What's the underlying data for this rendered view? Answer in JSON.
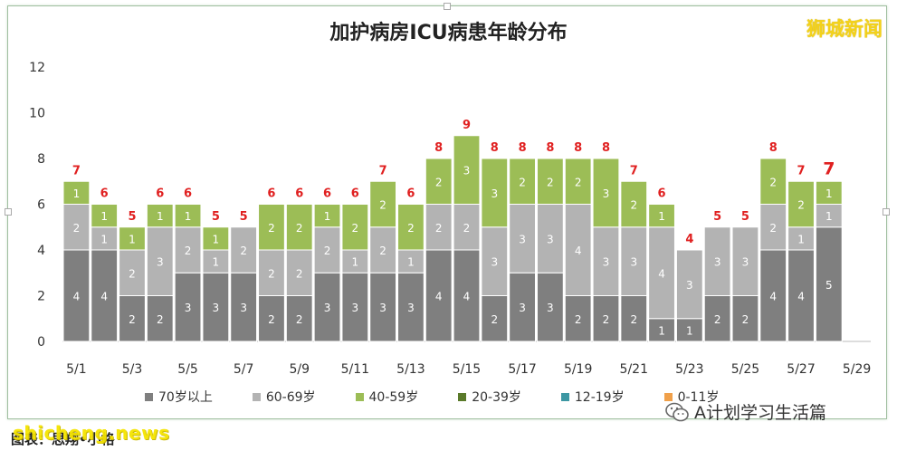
{
  "brand": "狮城新闻",
  "watermark": "shicheng.news",
  "caption": "图表：思翔•小格",
  "wechat_label": "A计划学习生活篇",
  "colors": {
    "70+": "#7f7f7f",
    "60-69": "#b3b3b3",
    "40-59": "#9cbd56",
    "20-39": "#5a7a2a",
    "12-19": "#3d97a3",
    "0-11": "#f0a04a",
    "total_label": "#e02020"
  },
  "chart_data": {
    "type": "bar",
    "stacked": true,
    "title": "加护病房ICU病患年龄分布",
    "ylim": [
      0,
      12
    ],
    "yticks": [
      0,
      2,
      4,
      6,
      8,
      10,
      12
    ],
    "categories": [
      "5/1",
      "5/2",
      "5/3",
      "5/4",
      "5/5",
      "5/6",
      "5/7",
      "5/8",
      "5/9",
      "5/10",
      "5/11",
      "5/12",
      "5/13",
      "5/14",
      "5/15",
      "5/16",
      "5/17",
      "5/18",
      "5/19",
      "5/20",
      "5/21",
      "5/22",
      "5/23",
      "5/24",
      "5/25",
      "5/26",
      "5/27",
      "5/28",
      "5/29"
    ],
    "xtick_labels": [
      "5/1",
      "5/3",
      "5/5",
      "5/7",
      "5/9",
      "5/11",
      "5/13",
      "5/15",
      "5/17",
      "5/19",
      "5/21",
      "5/23",
      "5/25",
      "5/27",
      "5/29"
    ],
    "series": [
      {
        "name": "70岁以上",
        "values": [
          4,
          4,
          2,
          2,
          3,
          3,
          3,
          2,
          2,
          3,
          3,
          3,
          3,
          4,
          4,
          2,
          3,
          3,
          2,
          2,
          2,
          1,
          1,
          2,
          2,
          4,
          4,
          5,
          null
        ]
      },
      {
        "name": "60-69岁",
        "values": [
          2,
          1,
          2,
          3,
          2,
          1,
          2,
          2,
          2,
          2,
          1,
          2,
          1,
          2,
          2,
          3,
          3,
          3,
          4,
          3,
          3,
          4,
          3,
          3,
          3,
          2,
          1,
          1,
          null
        ]
      },
      {
        "name": "40-59岁",
        "values": [
          1,
          1,
          1,
          1,
          1,
          1,
          0,
          2,
          2,
          1,
          2,
          2,
          2,
          2,
          3,
          3,
          2,
          2,
          2,
          3,
          2,
          1,
          0,
          0,
          0,
          2,
          2,
          1,
          null
        ]
      },
      {
        "name": "20-39岁",
        "values": [
          0,
          0,
          0,
          0,
          0,
          0,
          0,
          0,
          0,
          0,
          0,
          0,
          0,
          0,
          0,
          0,
          0,
          0,
          0,
          0,
          0,
          0,
          0,
          0,
          0,
          0,
          0,
          0,
          null
        ]
      },
      {
        "name": "12-19岁",
        "values": [
          0,
          0,
          0,
          0,
          0,
          0,
          0,
          0,
          0,
          0,
          0,
          0,
          0,
          0,
          0,
          0,
          0,
          0,
          0,
          0,
          0,
          0,
          0,
          0,
          0,
          0,
          0,
          0,
          null
        ]
      },
      {
        "name": "0-11岁",
        "values": [
          0,
          0,
          0,
          0,
          0,
          0,
          0,
          0,
          0,
          0,
          0,
          0,
          0,
          0,
          0,
          0,
          0,
          0,
          0,
          0,
          0,
          0,
          0,
          0,
          0,
          0,
          0,
          0,
          null
        ]
      }
    ],
    "totals": [
      7,
      6,
      5,
      6,
      6,
      5,
      5,
      6,
      6,
      6,
      6,
      7,
      6,
      8,
      9,
      8,
      8,
      8,
      8,
      8,
      7,
      6,
      4,
      5,
      5,
      8,
      7,
      7,
      null
    ],
    "legend": [
      "70岁以上",
      "60-69岁",
      "40-59岁",
      "20-39岁",
      "12-19岁",
      "0-11岁"
    ],
    "legend_position": "bottom",
    "grid": false
  }
}
